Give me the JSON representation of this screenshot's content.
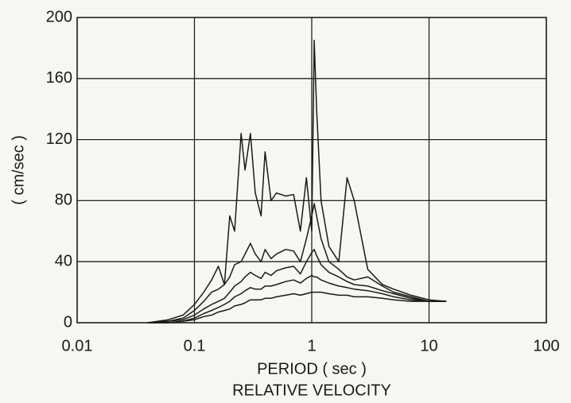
{
  "chart_data": {
    "type": "line",
    "title": "RELATIVE VELOCITY",
    "xlabel": "PERIOD ( sec )",
    "ylabel": "( cm/sec )",
    "xscale": "log",
    "xlim": [
      0.01,
      100
    ],
    "xticks": [
      0.01,
      0.1,
      1,
      10,
      100
    ],
    "ylim": [
      0,
      200
    ],
    "yticks": [
      0,
      40,
      80,
      120,
      160,
      200
    ],
    "grid": true,
    "x": [
      0.04,
      0.06,
      0.08,
      0.1,
      0.12,
      0.14,
      0.16,
      0.18,
      0.2,
      0.22,
      0.25,
      0.27,
      0.3,
      0.33,
      0.37,
      0.4,
      0.45,
      0.5,
      0.6,
      0.7,
      0.8,
      0.9,
      1,
      1.05,
      1.1,
      1.2,
      1.4,
      1.7,
      2,
      2.3,
      3,
      4,
      5,
      7,
      10,
      14
    ],
    "series": [
      {
        "color": "#1a1a1a",
        "values": [
          0,
          2,
          5,
          12,
          20,
          28,
          37,
          25,
          70,
          60,
          124,
          100,
          124,
          85,
          70,
          112,
          80,
          85,
          83,
          84,
          60,
          95,
          60,
          185,
          140,
          80,
          50,
          40,
          95,
          80,
          35,
          25,
          22,
          18,
          15,
          14
        ]
      },
      {
        "color": "#1a1a1a",
        "values": [
          0,
          1,
          3,
          8,
          14,
          20,
          22,
          25,
          30,
          38,
          40,
          45,
          52,
          45,
          40,
          48,
          42,
          45,
          48,
          47,
          40,
          55,
          70,
          78,
          70,
          55,
          40,
          35,
          30,
          28,
          30,
          24,
          20,
          17,
          14,
          14
        ]
      },
      {
        "color": "#1a1a1a",
        "values": [
          0,
          1,
          2,
          5,
          9,
          12,
          14,
          16,
          20,
          24,
          27,
          30,
          33,
          31,
          29,
          33,
          31,
          34,
          36,
          37,
          32,
          40,
          46,
          48,
          44,
          38,
          33,
          30,
          27,
          25,
          24,
          21,
          19,
          16,
          14,
          14
        ]
      },
      {
        "color": "#1a1a1a",
        "values": [
          0,
          0,
          1,
          3,
          6,
          8,
          10,
          12,
          14,
          17,
          19,
          21,
          23,
          22,
          22,
          24,
          24,
          25,
          27,
          28,
          26,
          29,
          31,
          30,
          30,
          28,
          26,
          24,
          23,
          22,
          21,
          19,
          17,
          15,
          14,
          14
        ]
      },
      {
        "color": "#1a1a1a",
        "values": [
          0,
          0,
          1,
          2,
          4,
          5,
          7,
          8,
          9,
          11,
          12,
          13,
          15,
          15,
          15,
          16,
          16,
          17,
          18,
          19,
          18,
          19,
          20,
          20,
          20,
          20,
          19,
          18,
          18,
          17,
          17,
          16,
          15,
          14,
          14,
          14
        ]
      }
    ]
  }
}
